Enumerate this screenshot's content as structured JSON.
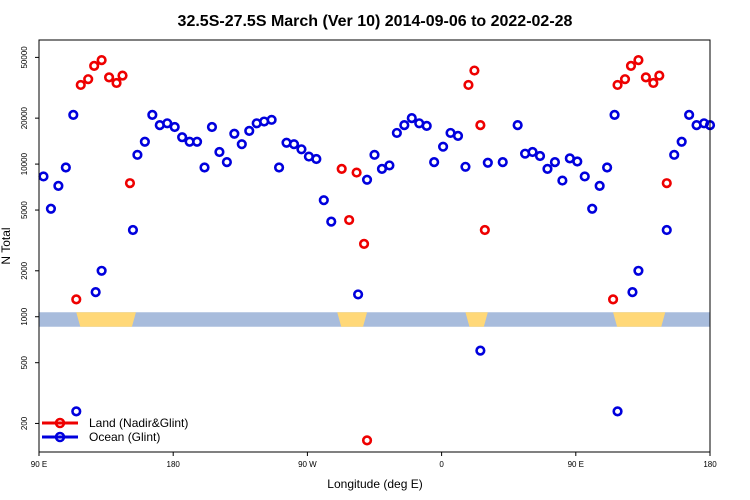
{
  "chart_data": {
    "type": "scatter",
    "title": "32.5S-27.5S March (Ver 10)   2014-09-06 to 2022-02-28",
    "xlabel": "Longitude (deg E)",
    "ylabel": "N Total",
    "x_ticks": [
      {
        "value": 90,
        "label": "90 E"
      },
      {
        "value": 180,
        "label": "180"
      },
      {
        "value": 270,
        "label": "90 W"
      },
      {
        "value": 360,
        "label": "0"
      },
      {
        "value": 450,
        "label": "90 E"
      },
      {
        "value": 540,
        "label": "180"
      }
    ],
    "xlim": [
      90,
      540
    ],
    "y_scale": "log",
    "ylim": [
      130,
      65000
    ],
    "y_ticks": [
      {
        "value": 200,
        "label": "200"
      },
      {
        "value": 500,
        "label": "500"
      },
      {
        "value": 1000,
        "label": "1000"
      },
      {
        "value": 2000,
        "label": "2000"
      },
      {
        "value": 5000,
        "label": "5000"
      },
      {
        "value": 10000,
        "label": "10000"
      },
      {
        "value": 20000,
        "label": "20000"
      },
      {
        "value": 50000,
        "label": "50000"
      }
    ],
    "grid": false,
    "legend_position": "bottom-left",
    "land_ocean_band": {
      "y_from": 860,
      "y_to": 1070,
      "ocean_color": "#a8bcdc",
      "land_color": "#ffd878",
      "land_segments": [
        [
          115,
          155
        ],
        [
          290,
          310
        ],
        [
          376,
          391
        ],
        [
          475,
          510
        ]
      ]
    },
    "series": [
      {
        "name": "Land (Nadir&Glint)",
        "color": "#ee0000",
        "points": [
          [
            115,
            1300
          ],
          [
            118,
            33000
          ],
          [
            123,
            36000
          ],
          [
            127,
            44000
          ],
          [
            132,
            48000
          ],
          [
            137,
            37000
          ],
          [
            142,
            34000
          ],
          [
            146,
            38000
          ],
          [
            151,
            7500
          ],
          [
            293,
            9300
          ],
          [
            298,
            4300
          ],
          [
            303,
            8800
          ],
          [
            308,
            3000
          ],
          [
            310,
            155
          ],
          [
            378,
            33000
          ],
          [
            382,
            41000
          ],
          [
            386,
            18000
          ],
          [
            389,
            3700
          ],
          [
            475,
            1300
          ],
          [
            478,
            33000
          ],
          [
            483,
            36000
          ],
          [
            487,
            44000
          ],
          [
            492,
            48000
          ],
          [
            497,
            37000
          ],
          [
            502,
            34000
          ],
          [
            506,
            38000
          ],
          [
            511,
            7500
          ]
        ]
      },
      {
        "name": "Ocean (Glint)",
        "color": "#0000dd",
        "points": [
          [
            93,
            8300
          ],
          [
            98,
            5100
          ],
          [
            103,
            7200
          ],
          [
            108,
            9500
          ],
          [
            113,
            21000
          ],
          [
            115,
            240
          ],
          [
            128,
            1450
          ],
          [
            132,
            2000
          ],
          [
            153,
            3700
          ],
          [
            156,
            11500
          ],
          [
            161,
            14000
          ],
          [
            166,
            21000
          ],
          [
            171,
            18000
          ],
          [
            176,
            18500
          ],
          [
            181,
            17500
          ],
          [
            186,
            15000
          ],
          [
            191,
            14000
          ],
          [
            196,
            14000
          ],
          [
            201,
            9500
          ],
          [
            206,
            17500
          ],
          [
            211,
            12000
          ],
          [
            216,
            10300
          ],
          [
            221,
            15800
          ],
          [
            226,
            13500
          ],
          [
            231,
            16500
          ],
          [
            236,
            18500
          ],
          [
            241,
            19000
          ],
          [
            246,
            19500
          ],
          [
            251,
            9500
          ],
          [
            256,
            13800
          ],
          [
            261,
            13500
          ],
          [
            266,
            12500
          ],
          [
            271,
            11200
          ],
          [
            276,
            10800
          ],
          [
            281,
            5800
          ],
          [
            286,
            4200
          ],
          [
            304,
            1400
          ],
          [
            310,
            7900
          ],
          [
            315,
            11500
          ],
          [
            320,
            9300
          ],
          [
            325,
            9800
          ],
          [
            330,
            16000
          ],
          [
            335,
            18000
          ],
          [
            340,
            20000
          ],
          [
            345,
            18500
          ],
          [
            350,
            17800
          ],
          [
            355,
            10300
          ],
          [
            361,
            13000
          ],
          [
            366,
            16000
          ],
          [
            371,
            15300
          ],
          [
            376,
            9600
          ],
          [
            386,
            600
          ],
          [
            391,
            10200
          ],
          [
            401,
            10300
          ],
          [
            411,
            18000
          ],
          [
            416,
            11700
          ],
          [
            421,
            12000
          ],
          [
            426,
            11300
          ],
          [
            431,
            9300
          ],
          [
            436,
            10300
          ],
          [
            441,
            7800
          ],
          [
            446,
            10900
          ],
          [
            451,
            10400
          ],
          [
            456,
            8300
          ],
          [
            461,
            5100
          ],
          [
            466,
            7200
          ],
          [
            471,
            9500
          ],
          [
            476,
            21000
          ],
          [
            478,
            240
          ],
          [
            488,
            1450
          ],
          [
            492,
            2000
          ],
          [
            511,
            3700
          ],
          [
            516,
            11500
          ],
          [
            521,
            14000
          ],
          [
            526,
            21000
          ],
          [
            531,
            18000
          ],
          [
            536,
            18500
          ],
          [
            540,
            18000
          ]
        ]
      }
    ]
  }
}
